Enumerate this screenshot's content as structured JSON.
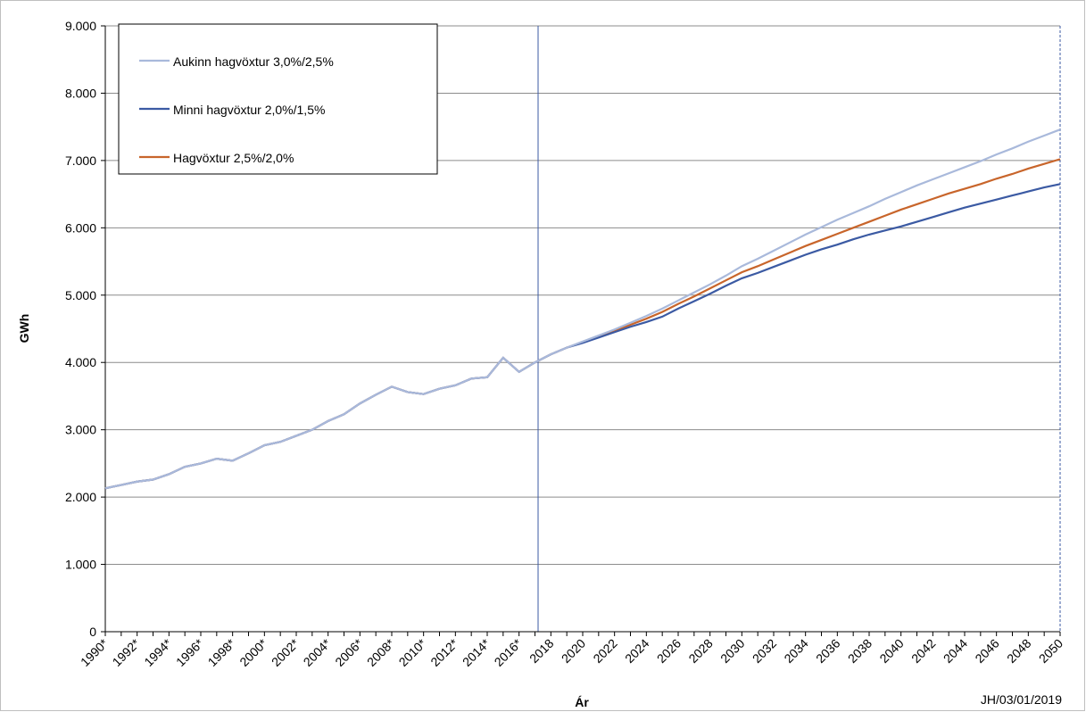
{
  "chart_data": {
    "type": "line",
    "y_label": "GWh",
    "x_label": "Ár",
    "annotation": "JH/03/01/2019",
    "categories": [
      "1990*",
      null,
      "1992*",
      null,
      "1994*",
      null,
      "1996*",
      null,
      "1998*",
      null,
      "2000*",
      null,
      "2002*",
      null,
      "2004*",
      null,
      "2006*",
      null,
      "2008*",
      null,
      "2010*",
      null,
      "2012*",
      null,
      "2014*",
      null,
      "2016*",
      null,
      "2018",
      null,
      "2020",
      null,
      "2022",
      null,
      "2024",
      null,
      "2026",
      null,
      "2028",
      null,
      "2030",
      null,
      "2032",
      null,
      "2034",
      null,
      "2036",
      null,
      "2038",
      null,
      "2040",
      null,
      "2042",
      null,
      "2044",
      null,
      "2046",
      null,
      "2048",
      null,
      "2050"
    ],
    "series": [
      {
        "name": "Aukinn hagvöxtur 3,0%/2,5%",
        "color": "#a9b9db",
        "values": [
          2130,
          2180,
          2230,
          2260,
          2340,
          2450,
          2500,
          2570,
          2540,
          2650,
          2770,
          2820,
          2910,
          3000,
          3130,
          3230,
          3390,
          3520,
          3640,
          3560,
          3530,
          3610,
          3660,
          3760,
          3780,
          4070,
          3860,
          4000,
          4120,
          4220,
          4310,
          4400,
          4490,
          4590,
          4690,
          4800,
          4920,
          5040,
          5160,
          5290,
          5430,
          5540,
          5660,
          5780,
          5900,
          6010,
          6120,
          6220,
          6320,
          6430,
          6530,
          6630,
          6720,
          6810,
          6900,
          6990,
          7090,
          7180,
          7280,
          7370,
          7460
        ]
      },
      {
        "name": "Minni hagvöxtur 2,0%/1,5%",
        "color": "#3b5aa3",
        "values": [
          2130,
          2180,
          2230,
          2260,
          2340,
          2450,
          2500,
          2570,
          2540,
          2650,
          2770,
          2820,
          2910,
          3000,
          3130,
          3230,
          3390,
          3520,
          3640,
          3560,
          3530,
          3610,
          3660,
          3760,
          3780,
          4070,
          3860,
          4000,
          4120,
          4220,
          4290,
          4370,
          4450,
          4530,
          4600,
          4680,
          4800,
          4910,
          5020,
          5140,
          5250,
          5330,
          5420,
          5510,
          5600,
          5680,
          5750,
          5830,
          5900,
          5960,
          6020,
          6090,
          6160,
          6230,
          6300,
          6360,
          6420,
          6480,
          6540,
          6600,
          6650
        ]
      },
      {
        "name": "Hagvöxtur 2,5%/2,0%",
        "color": "#c8652b",
        "values": [
          2130,
          2180,
          2230,
          2260,
          2340,
          2450,
          2500,
          2570,
          2540,
          2650,
          2770,
          2820,
          2910,
          3000,
          3130,
          3230,
          3390,
          3520,
          3640,
          3560,
          3530,
          3610,
          3660,
          3760,
          3780,
          4070,
          3860,
          4000,
          4120,
          4220,
          4300,
          4390,
          4470,
          4560,
          4650,
          4750,
          4870,
          4980,
          5100,
          5220,
          5340,
          5430,
          5530,
          5630,
          5730,
          5820,
          5910,
          6000,
          6090,
          6180,
          6270,
          6350,
          6430,
          6510,
          6580,
          6650,
          6730,
          6800,
          6880,
          6950,
          7020
        ]
      }
    ],
    "ylim": [
      0,
      9000
    ],
    "yticks": [
      0,
      {
        "value": 1000,
        "label": "1.000"
      },
      {
        "value": 2000,
        "label": "2.000"
      },
      {
        "value": 3000,
        "label": "3.000"
      },
      {
        "value": 4000,
        "label": "4.000"
      },
      {
        "value": 5000,
        "label": "5.000"
      },
      {
        "value": 6000,
        "label": "6.000"
      },
      {
        "value": 7000,
        "label": "7.000"
      },
      {
        "value": 8000,
        "label": "8.000"
      },
      {
        "value": 9000,
        "label": "9.000"
      }
    ],
    "grid": true,
    "legend": "upper left"
  }
}
